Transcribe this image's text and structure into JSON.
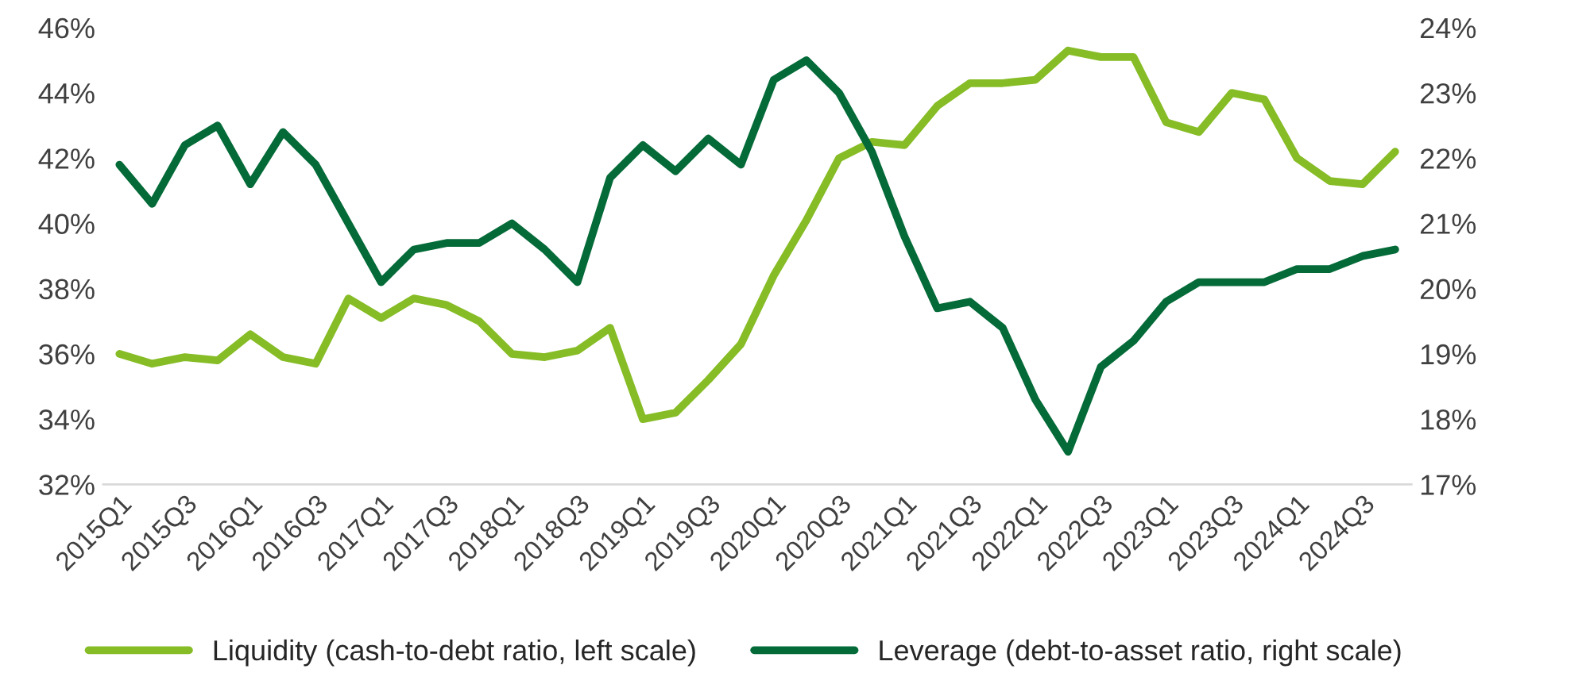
{
  "chart_data": {
    "type": "line",
    "categories": [
      "2015Q1",
      null,
      "2015Q3",
      null,
      "2016Q1",
      null,
      "2016Q3",
      null,
      "2017Q1",
      null,
      "2017Q3",
      null,
      "2018Q1",
      null,
      "2018Q3",
      null,
      "2019Q1",
      null,
      "2019Q3",
      null,
      "2020Q1",
      null,
      "2020Q3",
      null,
      "2021Q1",
      null,
      "2021Q3",
      null,
      "2022Q1",
      null,
      "2022Q3",
      null,
      "2023Q1",
      null,
      "2023Q3",
      null,
      "2024Q1",
      null,
      "2024Q3",
      null
    ],
    "series": [
      {
        "name": "Liquidity (cash-to-debt ratio, left scale)",
        "color": "#86bc25",
        "values": [
          36.0,
          35.7,
          35.9,
          35.8,
          36.6,
          35.9,
          35.7,
          37.7,
          37.1,
          37.7,
          37.5,
          37.0,
          36.0,
          35.9,
          36.1,
          36.8,
          34.0,
          34.2,
          35.2,
          36.3,
          38.4,
          40.1,
          42.0,
          42.5,
          42.4,
          43.6,
          44.3,
          44.3,
          44.4,
          45.3,
          45.1,
          45.1,
          43.1,
          42.8,
          44.0,
          43.8,
          42.0,
          41.3,
          41.2,
          42.2
        ]
      },
      {
        "name": "Leverage (debt-to-asset ratio, right scale)",
        "color": "#046a38",
        "axis": "y2",
        "values": [
          21.9,
          21.3,
          22.2,
          22.5,
          21.6,
          22.4,
          21.9,
          21.0,
          20.1,
          20.6,
          20.7,
          20.7,
          21.0,
          20.6,
          20.1,
          21.7,
          22.2,
          21.8,
          22.3,
          21.9,
          23.2,
          23.5,
          23.0,
          22.1,
          20.8,
          19.7,
          19.8,
          19.4,
          18.3,
          17.5,
          18.8,
          19.2,
          19.8,
          20.1,
          20.1,
          20.1,
          20.3,
          20.3,
          20.5,
          20.6
        ]
      }
    ],
    "ylim": [
      32,
      46
    ],
    "yticks": [
      {
        "value": 32,
        "label": "32%"
      },
      {
        "value": 34,
        "label": "34%"
      },
      {
        "value": 36,
        "label": "36%"
      },
      {
        "value": 38,
        "label": "38%"
      },
      {
        "value": 40,
        "label": "40%"
      },
      {
        "value": 42,
        "label": "42%"
      },
      {
        "value": 44,
        "label": "44%"
      },
      {
        "value": 46,
        "label": "46%"
      }
    ],
    "y2lim": [
      17,
      24
    ],
    "y2ticks": [
      {
        "value": 17,
        "label": "17%"
      },
      {
        "value": 18,
        "label": "18%"
      },
      {
        "value": 19,
        "label": "19%"
      },
      {
        "value": 20,
        "label": "20%"
      },
      {
        "value": 21,
        "label": "21%"
      },
      {
        "value": 22,
        "label": "22%"
      },
      {
        "value": 23,
        "label": "23%"
      },
      {
        "value": 24,
        "label": "24%"
      }
    ],
    "legend": "bottom",
    "grid": false,
    "marker": "none",
    "line_style": "solid"
  }
}
